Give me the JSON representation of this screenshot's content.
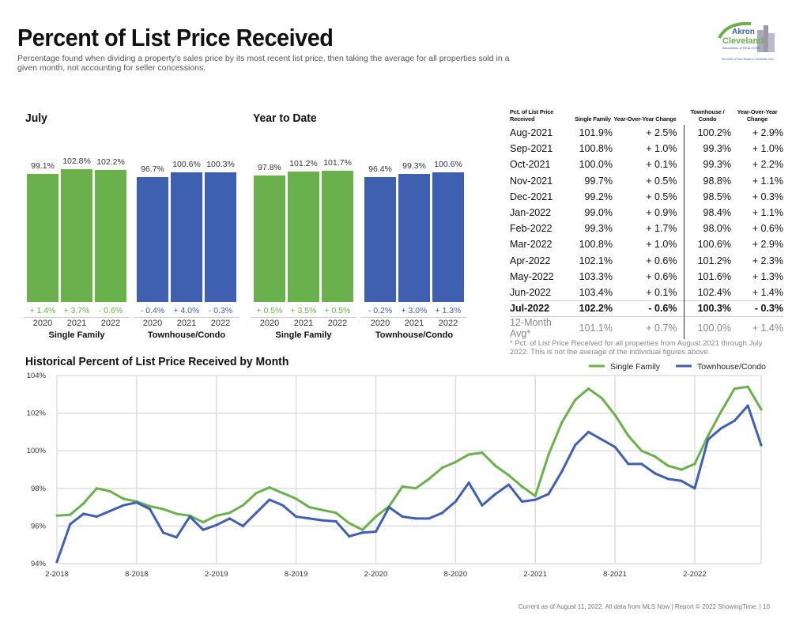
{
  "header": {
    "title": "Percent of List Price Received",
    "subtitle": "Percentage found when dividing a property's sales price by its most recent list price, then taking the average for all properties sold in a given month, not accounting for seller concessions.",
    "logo_text": [
      "Akron",
      "Cleveland",
      "Association of REALTORS",
      "The Voice of Real Estate in Northeast Ohio"
    ]
  },
  "colors": {
    "single_family": "#6ab04c",
    "townhouse": "#3f5fb0"
  },
  "chart_data": [
    {
      "type": "bar",
      "title": "July",
      "categories": [
        "2020",
        "2021",
        "2022"
      ],
      "series": [
        {
          "name": "Single Family",
          "values": [
            99.1,
            102.8,
            102.2
          ],
          "labels": [
            "99.1%",
            "102.8%",
            "102.2%"
          ],
          "changes": [
            "+ 1.4%",
            "+ 3.7%",
            "- 0.6%"
          ]
        },
        {
          "name": "Townhouse/Condo",
          "values": [
            96.7,
            100.6,
            100.3
          ],
          "labels": [
            "96.7%",
            "100.6%",
            "100.3%"
          ],
          "changes": [
            "- 0.4%",
            "+ 4.0%",
            "- 0.3%"
          ]
        }
      ]
    },
    {
      "type": "bar",
      "title": "Year to Date",
      "categories": [
        "2020",
        "2021",
        "2022"
      ],
      "series": [
        {
          "name": "Single Family",
          "values": [
            97.8,
            101.2,
            101.7
          ],
          "labels": [
            "97.8%",
            "101.2%",
            "101.7%"
          ],
          "changes": [
            "+ 0.5%",
            "+ 3.5%",
            "+ 0.5%"
          ]
        },
        {
          "name": "Townhouse/Condo",
          "values": [
            96.4,
            99.3,
            100.6
          ],
          "labels": [
            "96.4%",
            "99.3%",
            "100.6%"
          ],
          "changes": [
            "- 0.2%",
            "+ 3.0%",
            "+ 1.3%"
          ]
        }
      ]
    },
    {
      "type": "line",
      "title": "Historical Percent of List Price Received by Month",
      "x_start": "2-2018",
      "x_end": "7-2022",
      "xticks": [
        "2-2018",
        "8-2018",
        "2-2019",
        "8-2019",
        "2-2020",
        "8-2020",
        "2-2021",
        "8-2021",
        "2-2022"
      ],
      "yticks": [
        "94%",
        "96%",
        "98%",
        "100%",
        "102%",
        "104%"
      ],
      "ylim": [
        94,
        104
      ],
      "grid": true,
      "legend": "top-right",
      "series": [
        {
          "name": "Single Family",
          "values": [
            96.55,
            96.6,
            97.2,
            98.0,
            97.85,
            97.45,
            97.3,
            97.05,
            96.9,
            96.65,
            96.55,
            96.2,
            96.55,
            96.7,
            97.1,
            97.75,
            98.05,
            97.75,
            97.45,
            97.0,
            96.85,
            96.7,
            96.15,
            95.8,
            96.5,
            97.05,
            98.1,
            98.0,
            98.5,
            99.1,
            99.4,
            99.8,
            99.9,
            99.2,
            98.7,
            98.1,
            97.6,
            99.8,
            101.5,
            102.7,
            103.3,
            102.8,
            101.9,
            100.8,
            100.0,
            99.7,
            99.2,
            99.0,
            99.3,
            100.8,
            102.1,
            103.3,
            103.4,
            102.2
          ]
        },
        {
          "name": "Townhouse/Condo",
          "values": [
            94.1,
            96.1,
            96.65,
            96.5,
            96.8,
            97.1,
            97.25,
            96.9,
            95.65,
            95.4,
            96.5,
            95.8,
            96.05,
            96.4,
            96.0,
            96.7,
            97.4,
            97.1,
            96.5,
            96.4,
            96.3,
            96.25,
            95.45,
            95.65,
            95.7,
            97.0,
            96.5,
            96.4,
            96.4,
            96.7,
            97.3,
            98.3,
            97.1,
            97.7,
            98.2,
            97.3,
            97.4,
            97.7,
            98.9,
            100.3,
            101.0,
            100.6,
            100.2,
            99.3,
            99.3,
            98.8,
            98.5,
            98.4,
            98.0,
            100.6,
            101.2,
            101.6,
            102.4,
            100.3
          ]
        }
      ]
    }
  ],
  "table": {
    "headers": [
      "Pct. of List Price Received",
      "Single Family",
      "Year-Over-Year Change",
      "Townhouse / Condo",
      "Year-Over-Year Change"
    ],
    "rows": [
      [
        "Aug-2021",
        "101.9%",
        "+ 2.5%",
        "100.2%",
        "+ 2.9%"
      ],
      [
        "Sep-2021",
        "100.8%",
        "+ 1.0%",
        "99.3%",
        "+ 1.0%"
      ],
      [
        "Oct-2021",
        "100.0%",
        "+ 0.1%",
        "99.3%",
        "+ 2.2%"
      ],
      [
        "Nov-2021",
        "99.7%",
        "+ 0.5%",
        "98.8%",
        "+ 1.1%"
      ],
      [
        "Dec-2021",
        "99.2%",
        "+ 0.5%",
        "98.5%",
        "+ 0.3%"
      ],
      [
        "Jan-2022",
        "99.0%",
        "+ 0.9%",
        "98.4%",
        "+ 1.1%"
      ],
      [
        "Feb-2022",
        "99.3%",
        "+ 1.7%",
        "98.0%",
        "+ 0.6%"
      ],
      [
        "Mar-2022",
        "100.8%",
        "+ 1.0%",
        "100.6%",
        "+ 2.9%"
      ],
      [
        "Apr-2022",
        "102.1%",
        "+ 0.6%",
        "101.2%",
        "+ 2.3%"
      ],
      [
        "May-2022",
        "103.3%",
        "+ 0.6%",
        "101.6%",
        "+ 1.3%"
      ],
      [
        "Jun-2022",
        "103.4%",
        "+ 0.1%",
        "102.4%",
        "+ 1.4%"
      ],
      [
        "Jul-2022",
        "102.2%",
        "- 0.6%",
        "100.3%",
        "- 0.3%"
      ],
      [
        "12-Month Avg*",
        "101.1%",
        "+ 0.7%",
        "100.0%",
        "+ 1.4%"
      ]
    ],
    "footnote": "* Pct. of List Price Received for all properties from August 2021 through July 2022. This is not the average of the individual figures above."
  },
  "footer": "Current as of August 11, 2022. All data from MLS Now | Report © 2022 ShowingTime.  |  10"
}
